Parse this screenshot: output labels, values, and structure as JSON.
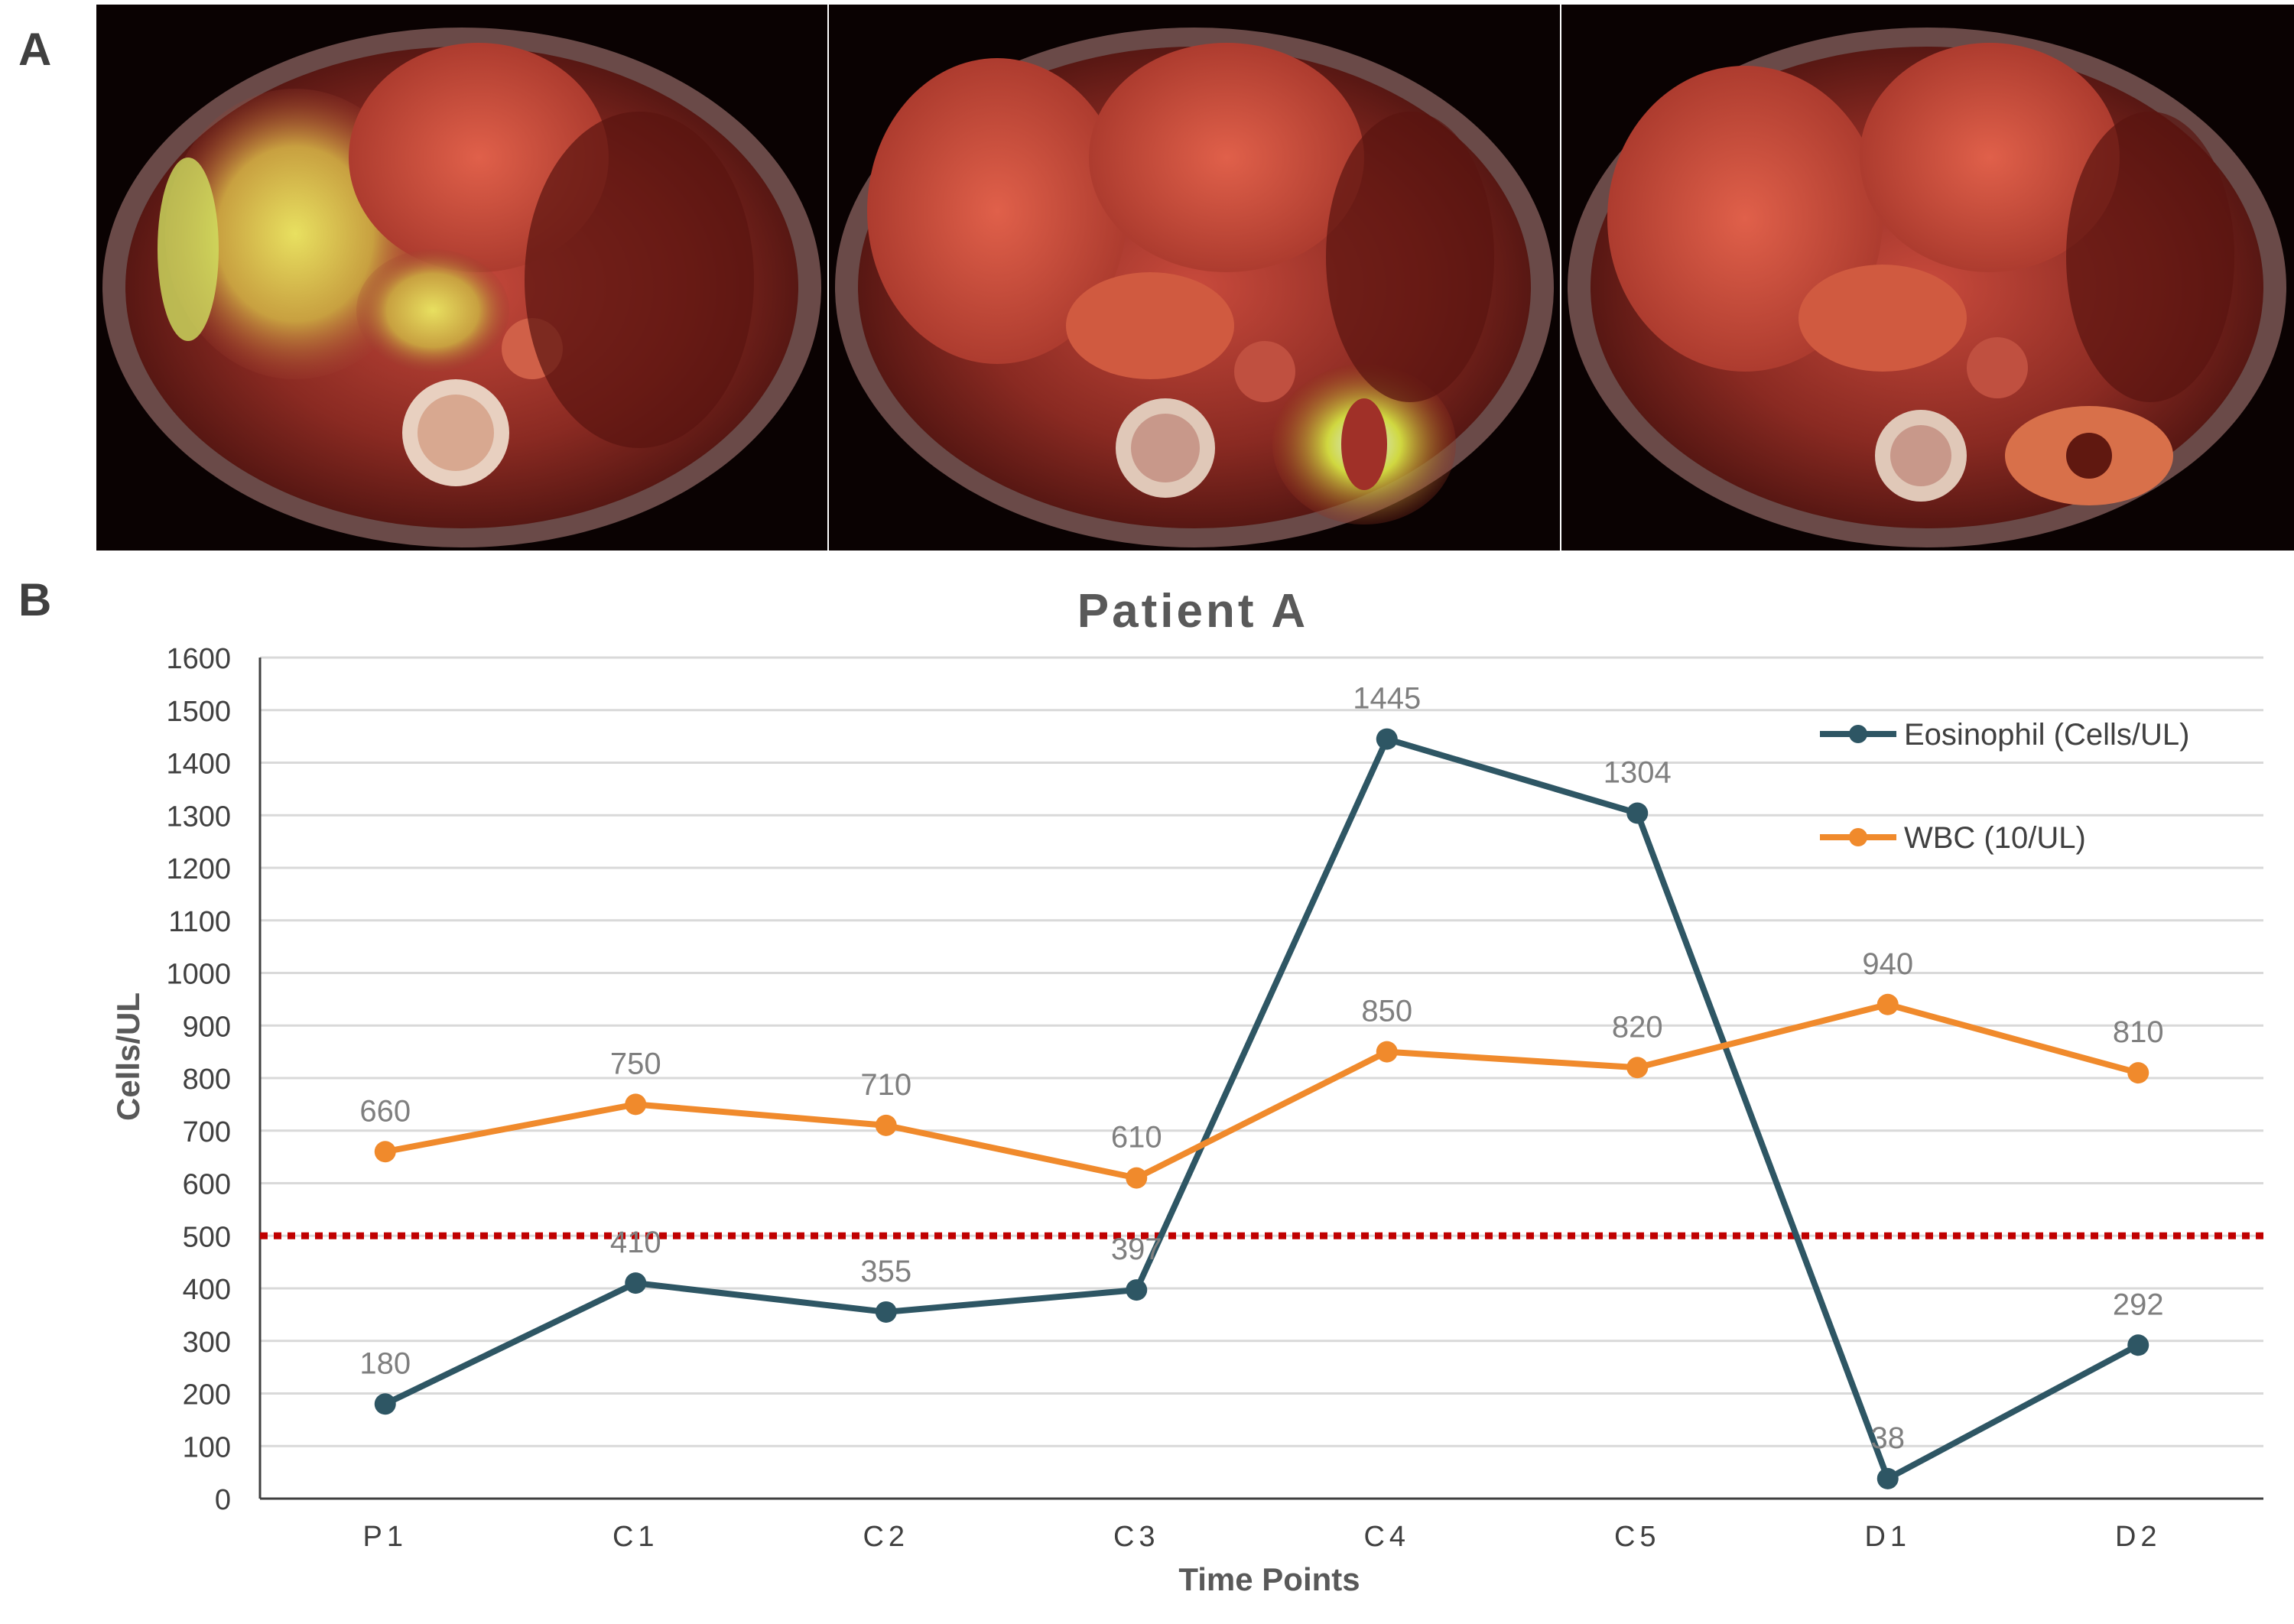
{
  "panels": {
    "a_label": "A",
    "b_label": "B"
  },
  "scans": [
    {
      "name": "pet-ct-scan-1"
    },
    {
      "name": "pet-ct-scan-2"
    },
    {
      "name": "pet-ct-scan-3"
    }
  ],
  "chart_data": {
    "type": "line",
    "title": "Patient A",
    "xlabel": "Time Points",
    "ylabel": "Cells/UL",
    "categories": [
      "P1",
      "C1",
      "C2",
      "C3",
      "C4",
      "C5",
      "D1",
      "D2"
    ],
    "ylim": [
      0,
      1600
    ],
    "yticks": [
      0,
      100,
      200,
      300,
      400,
      500,
      600,
      700,
      800,
      900,
      1000,
      1100,
      1200,
      1300,
      1400,
      1500,
      1600
    ],
    "grid": true,
    "legend_position": "top-right",
    "threshold": {
      "value": 500,
      "color": "#c00000"
    },
    "series": [
      {
        "name": "Eosinophil (Cells/UL)",
        "color": "#2e5664",
        "values": [
          180,
          410,
          355,
          397,
          1445,
          1304,
          38,
          292
        ]
      },
      {
        "name": "WBC (10/UL)",
        "color": "#f08a2c",
        "values": [
          660,
          750,
          710,
          610,
          850,
          820,
          940,
          810
        ]
      }
    ]
  }
}
